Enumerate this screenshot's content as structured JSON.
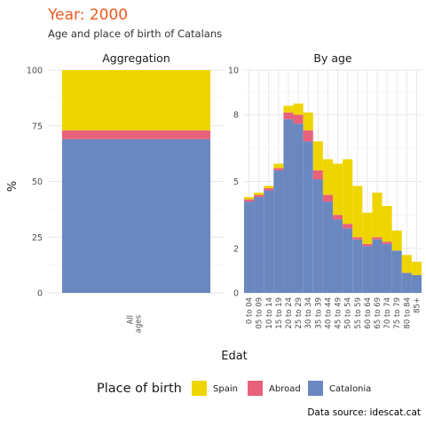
{
  "header": {
    "title": "Year: 2000",
    "subtitle": "Age and place of birth of Catalans"
  },
  "colors": {
    "title": "#f05a1e",
    "Spain": "#efd500",
    "Abroad": "#e8617a",
    "Catalonia": "#6b87c0"
  },
  "chart_data": [
    {
      "type": "bar",
      "stacked": true,
      "panel_title": "Aggregation",
      "categories": [
        "All ages"
      ],
      "category_label_lines": [
        "All",
        "ages"
      ],
      "ylabel": "%",
      "ylim": [
        0,
        100
      ],
      "yticks": [
        0,
        25,
        50,
        75,
        100
      ],
      "series": [
        {
          "name": "Catalonia",
          "values": [
            69
          ]
        },
        {
          "name": "Abroad",
          "values": [
            4
          ]
        },
        {
          "name": "Spain",
          "values": [
            27
          ]
        }
      ]
    },
    {
      "type": "bar",
      "stacked": true,
      "panel_title": "By age",
      "categories": [
        "0 to 04",
        "05 to 09",
        "10 to 14",
        "15 to 19",
        "20 to 24",
        "25 to 29",
        "30 to 34",
        "35 to 39",
        "40 to 44",
        "45 to 49",
        "50 to 54",
        "55 to 59",
        "60 to 64",
        "65 to 69",
        "70 to 74",
        "75 to 79",
        "80 to 84",
        "85+"
      ],
      "ylim": [
        0,
        10
      ],
      "yticks": [
        0,
        2,
        5,
        8,
        10
      ],
      "ytick_labels": [
        "0",
        "2",
        "5",
        "8",
        "10"
      ],
      "series": [
        {
          "name": "Catalonia",
          "values": [
            4.1,
            4.3,
            4.6,
            5.5,
            7.8,
            7.6,
            6.8,
            5.1,
            4.1,
            3.3,
            2.9,
            2.4,
            2.1,
            2.4,
            2.2,
            1.9,
            0.9,
            0.8
          ]
        },
        {
          "name": "Abroad",
          "values": [
            0.1,
            0.1,
            0.1,
            0.1,
            0.3,
            0.4,
            0.5,
            0.4,
            0.3,
            0.2,
            0.2,
            0.1,
            0.1,
            0.1,
            0.1,
            0.0,
            0.0,
            0.0
          ]
        },
        {
          "name": "Spain",
          "values": [
            0.1,
            0.1,
            0.1,
            0.2,
            0.3,
            0.5,
            0.8,
            1.3,
            1.6,
            2.3,
            2.9,
            2.3,
            1.4,
            2.0,
            1.6,
            0.9,
            0.8,
            0.6
          ]
        }
      ]
    }
  ],
  "x_axis_title": "Edat",
  "legend": {
    "title": "Place of birth",
    "items": [
      "Spain",
      "Abroad",
      "Catalonia"
    ]
  },
  "caption": "Data source: idescat.cat"
}
